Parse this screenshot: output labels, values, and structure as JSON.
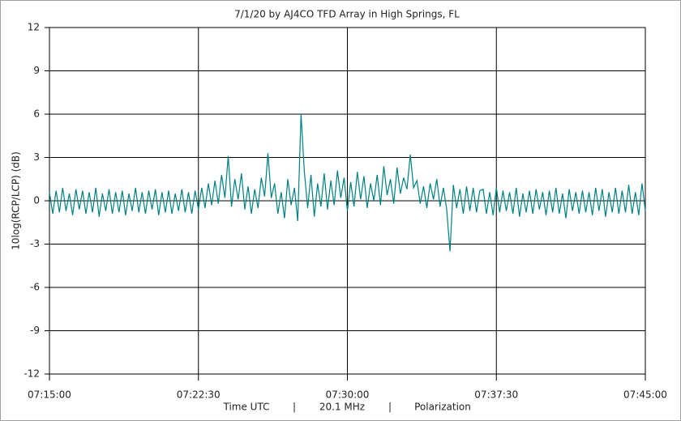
{
  "chart_data": {
    "type": "line",
    "title": "7/1/20  by  AJ4CO TFD Array  in  High Springs, FL",
    "y_label": "10log(RCP/LCP) (dB)",
    "x_label_parts": [
      "Time UTC",
      "|",
      "20.1 MHz",
      "|",
      "Polarization"
    ],
    "color": "#008080",
    "grid": true,
    "xlim": [
      "07:15:00",
      "07:45:00"
    ],
    "xticks": [
      "07:15:00",
      "07:22:30",
      "07:30:00",
      "07:37:30",
      "07:45:00"
    ],
    "ylim": [
      -12,
      12
    ],
    "yticks": [
      -12,
      -9,
      -6,
      -3,
      0,
      3,
      6,
      9,
      12
    ],
    "x": [
      "07:15:00",
      "07:15:10",
      "07:15:20",
      "07:15:30",
      "07:15:40",
      "07:15:50",
      "07:16:00",
      "07:16:10",
      "07:16:20",
      "07:16:30",
      "07:16:40",
      "07:16:50",
      "07:17:00",
      "07:17:10",
      "07:17:20",
      "07:17:30",
      "07:17:40",
      "07:17:50",
      "07:18:00",
      "07:18:10",
      "07:18:20",
      "07:18:30",
      "07:18:40",
      "07:18:50",
      "07:19:00",
      "07:19:10",
      "07:19:20",
      "07:19:30",
      "07:19:40",
      "07:19:50",
      "07:20:00",
      "07:20:10",
      "07:20:20",
      "07:20:30",
      "07:20:40",
      "07:20:50",
      "07:21:00",
      "07:21:10",
      "07:21:20",
      "07:21:30",
      "07:21:40",
      "07:21:50",
      "07:22:00",
      "07:22:10",
      "07:22:20",
      "07:22:30",
      "07:22:40",
      "07:22:50",
      "07:23:00",
      "07:23:10",
      "07:23:20",
      "07:23:30",
      "07:23:40",
      "07:23:50",
      "07:24:00",
      "07:24:10",
      "07:24:20",
      "07:24:30",
      "07:24:40",
      "07:24:50",
      "07:25:00",
      "07:25:10",
      "07:25:20",
      "07:25:30",
      "07:25:40",
      "07:25:50",
      "07:26:00",
      "07:26:10",
      "07:26:20",
      "07:26:30",
      "07:26:40",
      "07:26:50",
      "07:27:00",
      "07:27:10",
      "07:27:20",
      "07:27:30",
      "07:27:40",
      "07:27:50",
      "07:28:00",
      "07:28:10",
      "07:28:20",
      "07:28:30",
      "07:28:40",
      "07:28:50",
      "07:29:00",
      "07:29:10",
      "07:29:20",
      "07:29:30",
      "07:29:40",
      "07:29:50",
      "07:30:00",
      "07:30:10",
      "07:30:20",
      "07:30:30",
      "07:30:40",
      "07:30:50",
      "07:31:00",
      "07:31:10",
      "07:31:20",
      "07:31:30",
      "07:31:40",
      "07:31:50",
      "07:32:00",
      "07:32:10",
      "07:32:20",
      "07:32:30",
      "07:32:40",
      "07:32:50",
      "07:33:00",
      "07:33:10",
      "07:33:20",
      "07:33:30",
      "07:33:40",
      "07:33:50",
      "07:34:00",
      "07:34:10",
      "07:34:20",
      "07:34:30",
      "07:34:40",
      "07:34:50",
      "07:35:00",
      "07:35:10",
      "07:35:20",
      "07:35:30",
      "07:35:40",
      "07:35:50",
      "07:36:00",
      "07:36:10",
      "07:36:20",
      "07:36:30",
      "07:36:40",
      "07:36:50",
      "07:37:00",
      "07:37:10",
      "07:37:20",
      "07:37:30",
      "07:37:40",
      "07:37:50",
      "07:38:00",
      "07:38:10",
      "07:38:20",
      "07:38:30",
      "07:38:40",
      "07:38:50",
      "07:39:00",
      "07:39:10",
      "07:39:20",
      "07:39:30",
      "07:39:40",
      "07:39:50",
      "07:40:00",
      "07:40:10",
      "07:40:20",
      "07:40:30",
      "07:40:40",
      "07:40:50",
      "07:41:00",
      "07:41:10",
      "07:41:20",
      "07:41:30",
      "07:41:40",
      "07:41:50",
      "07:42:00",
      "07:42:10",
      "07:42:20",
      "07:42:30",
      "07:42:40",
      "07:42:50",
      "07:43:00",
      "07:43:10",
      "07:43:20",
      "07:43:30",
      "07:43:40",
      "07:43:50",
      "07:44:00",
      "07:44:10",
      "07:44:20",
      "07:44:30",
      "07:44:40",
      "07:44:50",
      "07:45:00"
    ],
    "values": [
      0.6,
      -0.9,
      0.7,
      -0.8,
      0.9,
      -0.7,
      0.5,
      -1.0,
      0.8,
      -0.6,
      0.7,
      -0.9,
      0.6,
      -0.8,
      0.9,
      -1.1,
      0.5,
      -0.7,
      0.8,
      -0.9,
      0.6,
      -0.8,
      0.7,
      -1.0,
      0.5,
      -0.7,
      0.9,
      -0.8,
      0.6,
      -0.9,
      0.7,
      -0.6,
      0.8,
      -1.0,
      0.6,
      -0.8,
      0.7,
      -0.9,
      0.5,
      -0.7,
      0.8,
      -0.8,
      0.6,
      -0.9,
      0.7,
      -0.6,
      0.9,
      -0.5,
      1.2,
      -0.3,
      1.4,
      -0.2,
      1.8,
      0.2,
      3.1,
      -0.4,
      1.5,
      0.1,
      1.9,
      -0.6,
      1.0,
      -0.9,
      0.8,
      -0.5,
      1.6,
      0.3,
      3.3,
      0.2,
      1.2,
      -0.9,
      0.6,
      -1.2,
      1.5,
      -0.3,
      0.9,
      -1.4,
      6.0,
      2.0,
      -0.5,
      1.8,
      -1.1,
      1.2,
      -0.4,
      1.9,
      -0.6,
      1.4,
      -0.3,
      2.1,
      0.2,
      1.6,
      -0.7,
      1.3,
      -0.4,
      2.0,
      0.1,
      1.7,
      -0.5,
      1.2,
      0.0,
      1.8,
      -0.3,
      2.4,
      0.4,
      1.5,
      -0.2,
      2.3,
      0.5,
      1.6,
      0.8,
      3.2,
      0.9,
      1.4,
      -0.2,
      1.0,
      -0.5,
      1.2,
      0.1,
      1.5,
      -0.4,
      0.9,
      -0.6,
      -3.5,
      1.1,
      -0.5,
      0.8,
      -0.9,
      1.0,
      -0.7,
      0.9,
      -0.8,
      0.7,
      0.8,
      -0.9,
      0.6,
      -1.0,
      0.9,
      -0.8,
      0.7,
      -0.7,
      0.6,
      -0.9,
      0.9,
      -1.1,
      0.5,
      -0.8,
      0.7,
      -0.9,
      0.8,
      -0.6,
      0.6,
      -1.0,
      0.7,
      -0.8,
      0.9,
      -0.9,
      0.5,
      -1.2,
      0.8,
      -0.7,
      0.6,
      -0.9,
      0.7,
      -0.8,
      0.6,
      -1.0,
      0.9,
      -0.7,
      0.8,
      -1.1,
      0.6,
      -0.8,
      0.9,
      -0.9,
      0.7,
      -0.8,
      1.1,
      -0.9,
      0.6,
      -1.0,
      1.2,
      -0.7
    ]
  }
}
